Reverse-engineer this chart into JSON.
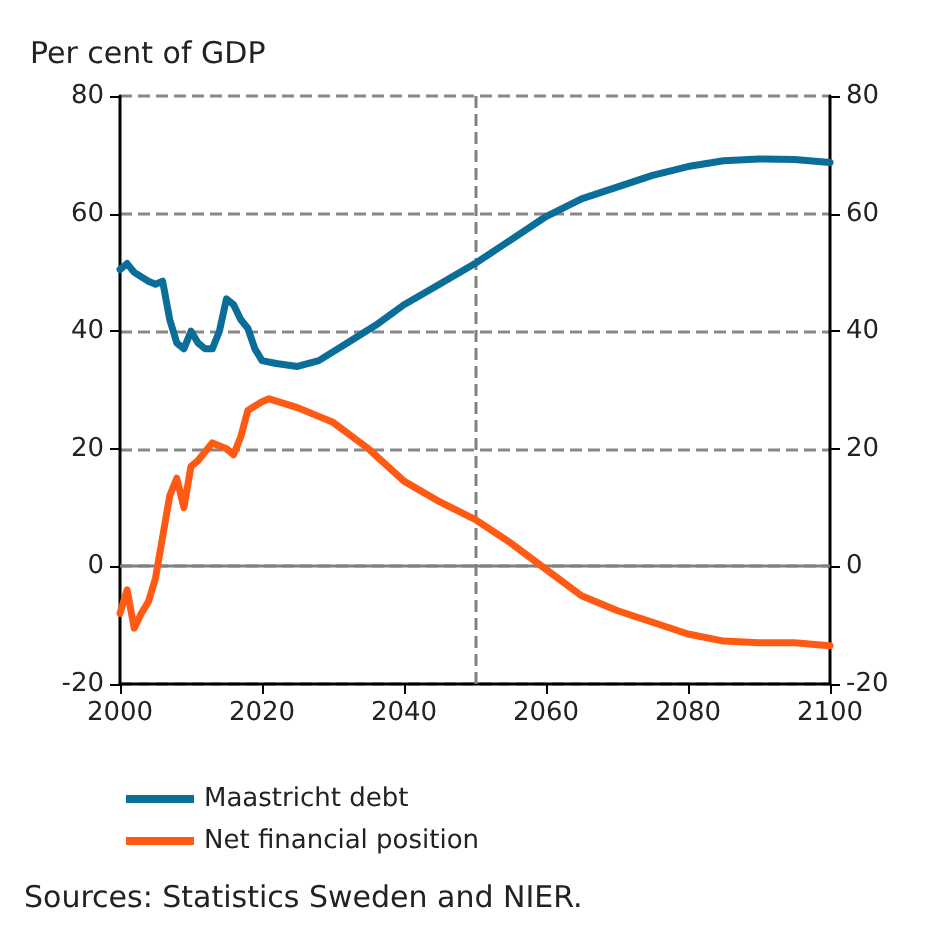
{
  "chart_data": {
    "type": "line",
    "ylabel": "Per cent of GDP",
    "annotations": [
      "Sources: Statistics Sweden and NIER."
    ],
    "xlim": [
      2000,
      2100
    ],
    "xticks": [
      2000,
      2020,
      2040,
      2060,
      2080,
      2100
    ],
    "ylim": [
      -20,
      80
    ],
    "yticks": [
      -20,
      0,
      20,
      40,
      60,
      80
    ],
    "y2lim": [
      -20,
      80
    ],
    "y2ticks": [
      -20,
      0,
      20,
      40,
      60,
      80
    ],
    "grid": "y",
    "legend": "bottom",
    "line_style": "solid",
    "marker": "none",
    "ref_lines": [
      {
        "axis": "x",
        "value": 2050,
        "line_style": "dashed",
        "color": "#808080"
      },
      {
        "axis": "y",
        "value": 0,
        "line_style": "solid",
        "color": "#808080"
      }
    ],
    "series": [
      {
        "name": "Maastricht debt",
        "color": "#0a6e99",
        "x": [
          2000,
          2001,
          2002,
          2004,
          2005,
          2006,
          2007,
          2008,
          2009,
          2010,
          2011,
          2012,
          2013,
          2014,
          2015,
          2016,
          2017,
          2018,
          2019,
          2020,
          2022,
          2025,
          2028,
          2032,
          2036,
          2040,
          2045,
          2050,
          2055,
          2060,
          2065,
          2070,
          2075,
          2080,
          2085,
          2090,
          2095,
          2100
        ],
        "values": [
          50.5,
          51.5,
          50,
          48.5,
          48,
          48.5,
          42,
          38,
          37,
          40,
          38,
          37,
          37,
          40,
          45.5,
          44.5,
          42,
          40.5,
          37,
          35,
          34.5,
          34,
          35,
          38,
          41,
          44.5,
          48,
          51.5,
          55.5,
          59.5,
          62.5,
          64.5,
          66.5,
          68,
          69,
          69.3,
          69.2,
          68.7
        ]
      },
      {
        "name": "Net financial position",
        "color": "#ff5a14",
        "x": [
          2000,
          2001,
          2002,
          2003,
          2004,
          2005,
          2006,
          2007,
          2008,
          2009,
          2010,
          2011,
          2012,
          2013,
          2015,
          2016,
          2017,
          2018,
          2020,
          2021,
          2025,
          2030,
          2035,
          2040,
          2045,
          2050,
          2055,
          2060,
          2065,
          2070,
          2075,
          2080,
          2085,
          2090,
          2095,
          2100
        ],
        "values": [
          -8,
          -4,
          -10.5,
          -8,
          -6,
          -2,
          5,
          12,
          15,
          10,
          17,
          18,
          19.5,
          21,
          20,
          19,
          22,
          26.5,
          28,
          28.5,
          27,
          24.5,
          20,
          14.5,
          11,
          8,
          4,
          -0.5,
          -5,
          -7.5,
          -9.5,
          -11.5,
          -12.7,
          -13,
          -13,
          -13.5
        ]
      }
    ]
  }
}
